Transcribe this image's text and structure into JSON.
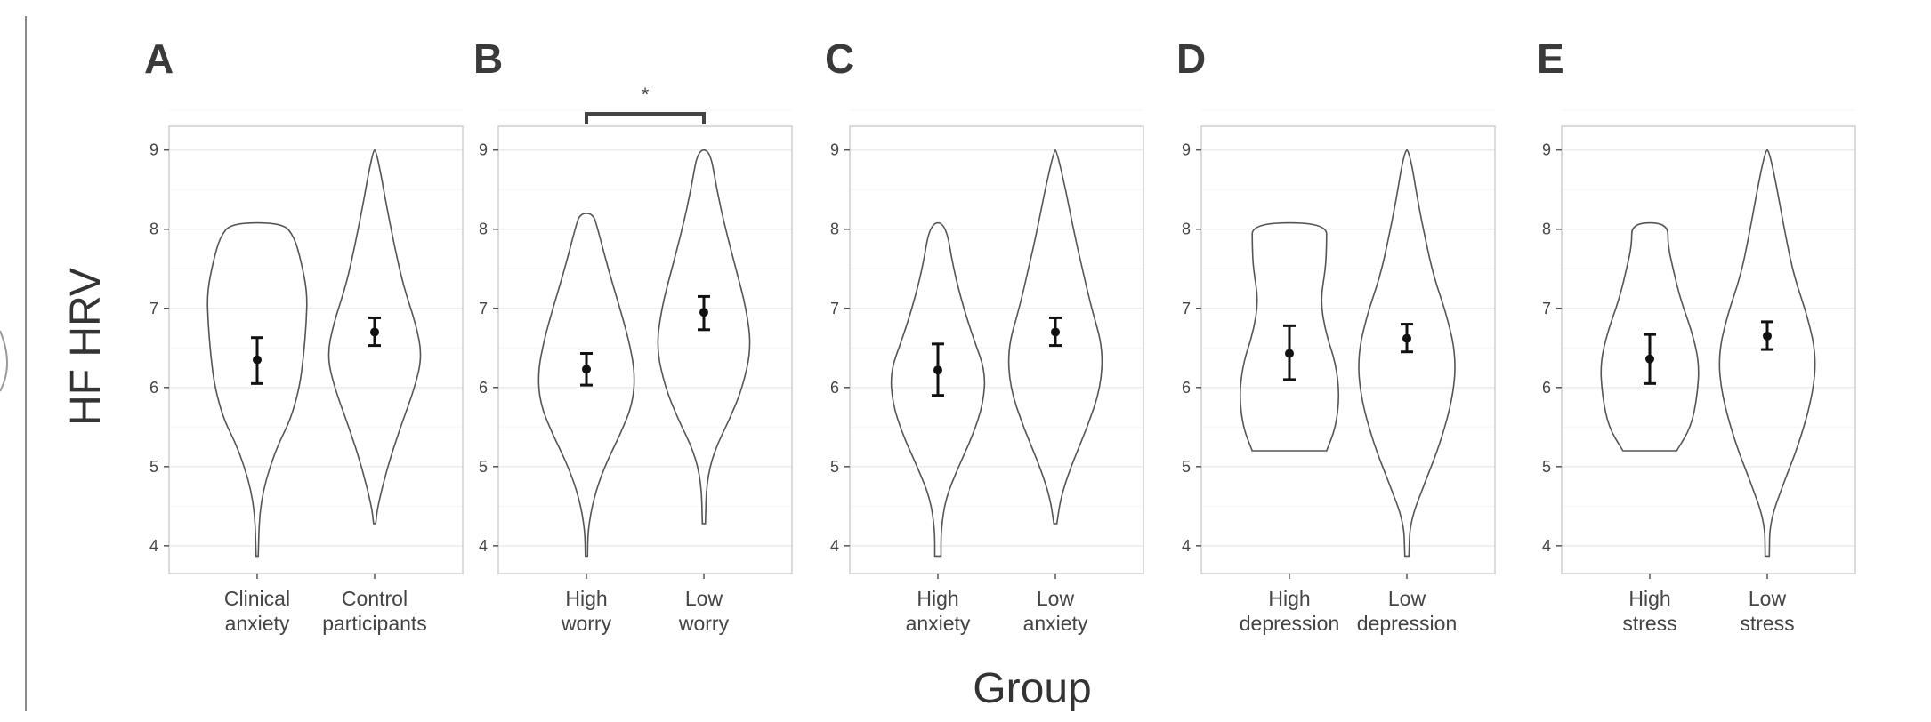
{
  "figure": {
    "ylabel": "HF HRV",
    "xlabel": "Group"
  },
  "chart_data": [
    {
      "type": "violin",
      "panel_label": "A",
      "ylabel": "HF HRV",
      "xlabel": "Group",
      "ylim": [
        3.65,
        9.3
      ],
      "yticks": [
        4,
        5,
        6,
        7,
        8,
        9
      ],
      "grid": true,
      "categories": [
        "Clinical\nanxiety",
        "Control\nparticipants"
      ],
      "groups": [
        {
          "category": "Clinical\nanxiety",
          "mean": 6.35,
          "ci_low": 6.05,
          "ci_high": 6.63,
          "violin": {
            "min": 3.87,
            "max": 8.08,
            "profile": [
              [
                3.87,
                0.02
              ],
              [
                4.1,
                0.03
              ],
              [
                4.4,
                0.05
              ],
              [
                4.7,
                0.12
              ],
              [
                5.0,
                0.25
              ],
              [
                5.3,
                0.42
              ],
              [
                5.6,
                0.65
              ],
              [
                6.0,
                0.82
              ],
              [
                6.4,
                0.9
              ],
              [
                6.8,
                0.95
              ],
              [
                7.2,
                0.97
              ],
              [
                7.6,
                0.85
              ],
              [
                7.9,
                0.72
              ],
              [
                8.08,
                0.5
              ]
            ]
          }
        },
        {
          "category": "Control\nparticipants",
          "mean": 6.7,
          "ci_low": 6.53,
          "ci_high": 6.88,
          "violin": {
            "min": 4.28,
            "max": 9.0,
            "profile": [
              [
                4.28,
                0.02
              ],
              [
                4.5,
                0.06
              ],
              [
                5.0,
                0.25
              ],
              [
                5.5,
                0.5
              ],
              [
                6.0,
                0.78
              ],
              [
                6.4,
                0.92
              ],
              [
                6.8,
                0.8
              ],
              [
                7.3,
                0.55
              ],
              [
                7.8,
                0.38
              ],
              [
                8.3,
                0.23
              ],
              [
                8.7,
                0.12
              ],
              [
                9.0,
                0.02
              ]
            ]
          }
        }
      ]
    },
    {
      "type": "violin",
      "panel_label": "B",
      "ylim": [
        3.65,
        9.3
      ],
      "yticks": [
        4,
        5,
        6,
        7,
        8,
        9
      ],
      "grid": true,
      "categories": [
        "High\nworry",
        "Low\nworry"
      ],
      "significance": {
        "between": [
          "High\nworry",
          "Low\nworry"
        ],
        "label": "*"
      },
      "groups": [
        {
          "category": "High\nworry",
          "mean": 6.23,
          "ci_low": 6.03,
          "ci_high": 6.43,
          "violin": {
            "min": 3.87,
            "max": 8.2,
            "profile": [
              [
                3.87,
                0.02
              ],
              [
                4.2,
                0.03
              ],
              [
                4.6,
                0.14
              ],
              [
                5.0,
                0.35
              ],
              [
                5.4,
                0.65
              ],
              [
                5.8,
                0.9
              ],
              [
                6.2,
                0.94
              ],
              [
                6.6,
                0.82
              ],
              [
                7.0,
                0.65
              ],
              [
                7.5,
                0.42
              ],
              [
                8.0,
                0.22
              ],
              [
                8.2,
                0.13
              ]
            ]
          }
        },
        {
          "category": "Low\nworry",
          "mean": 6.95,
          "ci_low": 6.73,
          "ci_high": 7.15,
          "violin": {
            "min": 4.28,
            "max": 9.0,
            "profile": [
              [
                4.28,
                0.03
              ],
              [
                4.8,
                0.05
              ],
              [
                5.2,
                0.2
              ],
              [
                5.6,
                0.5
              ],
              [
                6.0,
                0.75
              ],
              [
                6.5,
                0.92
              ],
              [
                7.0,
                0.82
              ],
              [
                7.5,
                0.62
              ],
              [
                8.0,
                0.42
              ],
              [
                8.5,
                0.25
              ],
              [
                9.0,
                0.12
              ]
            ]
          }
        }
      ]
    },
    {
      "type": "violin",
      "panel_label": "C",
      "ylim": [
        3.65,
        9.3
      ],
      "yticks": [
        4,
        5,
        6,
        7,
        8,
        9
      ],
      "grid": true,
      "categories": [
        "High\nanxiety",
        "Low\nanxiety"
      ],
      "groups": [
        {
          "category": "High\nanxiety",
          "mean": 6.22,
          "ci_low": 5.9,
          "ci_high": 6.55,
          "violin": {
            "min": 3.87,
            "max": 8.08,
            "profile": [
              [
                3.87,
                0.06
              ],
              [
                4.2,
                0.06
              ],
              [
                4.6,
                0.15
              ],
              [
                5.0,
                0.4
              ],
              [
                5.4,
                0.68
              ],
              [
                5.8,
                0.88
              ],
              [
                6.2,
                0.92
              ],
              [
                6.6,
                0.7
              ],
              [
                7.0,
                0.5
              ],
              [
                7.5,
                0.3
              ],
              [
                8.08,
                0.15
              ]
            ]
          }
        },
        {
          "category": "Low\nanxiety",
          "mean": 6.7,
          "ci_low": 6.53,
          "ci_high": 6.88,
          "violin": {
            "min": 4.28,
            "max": 9.0,
            "profile": [
              [
                4.28,
                0.03
              ],
              [
                4.6,
                0.1
              ],
              [
                5.0,
                0.3
              ],
              [
                5.5,
                0.62
              ],
              [
                6.0,
                0.88
              ],
              [
                6.5,
                0.92
              ],
              [
                7.0,
                0.7
              ],
              [
                7.5,
                0.52
              ],
              [
                8.0,
                0.35
              ],
              [
                8.5,
                0.2
              ],
              [
                9.0,
                0.02
              ]
            ]
          }
        }
      ]
    },
    {
      "type": "violin",
      "panel_label": "D",
      "ylim": [
        3.65,
        9.3
      ],
      "yticks": [
        4,
        5,
        6,
        7,
        8,
        9
      ],
      "grid": true,
      "categories": [
        "High\ndepression",
        "Low\ndepression"
      ],
      "groups": [
        {
          "category": "High\ndepression",
          "mean": 6.43,
          "ci_low": 6.1,
          "ci_high": 6.78,
          "violin": {
            "min": 5.2,
            "max": 8.08,
            "profile": [
              [
                5.2,
                0.72
              ],
              [
                5.5,
                0.9
              ],
              [
                5.9,
                0.97
              ],
              [
                6.3,
                0.9
              ],
              [
                6.7,
                0.7
              ],
              [
                7.1,
                0.6
              ],
              [
                7.5,
                0.7
              ],
              [
                7.8,
                0.72
              ],
              [
                8.08,
                0.72
              ]
            ]
          }
        },
        {
          "category": "Low\ndepression",
          "mean": 6.62,
          "ci_low": 6.45,
          "ci_high": 6.8,
          "violin": {
            "min": 3.87,
            "max": 9.0,
            "profile": [
              [
                3.87,
                0.04
              ],
              [
                4.3,
                0.06
              ],
              [
                4.8,
                0.35
              ],
              [
                5.3,
                0.65
              ],
              [
                5.9,
                0.9
              ],
              [
                6.4,
                0.95
              ],
              [
                6.9,
                0.78
              ],
              [
                7.4,
                0.52
              ],
              [
                7.9,
                0.35
              ],
              [
                8.4,
                0.2
              ],
              [
                8.8,
                0.1
              ],
              [
                9.0,
                0.02
              ]
            ]
          }
        }
      ]
    },
    {
      "type": "violin",
      "panel_label": "E",
      "ylim": [
        3.65,
        9.3
      ],
      "yticks": [
        4,
        5,
        6,
        7,
        8,
        9
      ],
      "grid": true,
      "categories": [
        "High\nstress",
        "Low\nstress"
      ],
      "groups": [
        {
          "category": "High\nstress",
          "mean": 6.36,
          "ci_low": 6.05,
          "ci_high": 6.67,
          "violin": {
            "min": 5.2,
            "max": 8.08,
            "profile": [
              [
                5.2,
                0.52
              ],
              [
                5.5,
                0.8
              ],
              [
                5.9,
                0.92
              ],
              [
                6.3,
                0.96
              ],
              [
                6.7,
                0.82
              ],
              [
                7.1,
                0.6
              ],
              [
                7.5,
                0.45
              ],
              [
                7.8,
                0.35
              ],
              [
                8.08,
                0.35
              ]
            ]
          }
        },
        {
          "category": "Low\nstress",
          "mean": 6.65,
          "ci_low": 6.48,
          "ci_high": 6.83,
          "violin": {
            "min": 3.87,
            "max": 9.0,
            "profile": [
              [
                3.87,
                0.04
              ],
              [
                4.3,
                0.05
              ],
              [
                4.8,
                0.32
              ],
              [
                5.3,
                0.62
              ],
              [
                5.9,
                0.88
              ],
              [
                6.4,
                0.95
              ],
              [
                6.9,
                0.78
              ],
              [
                7.4,
                0.52
              ],
              [
                7.9,
                0.36
              ],
              [
                8.4,
                0.22
              ],
              [
                8.8,
                0.1
              ],
              [
                9.0,
                0.02
              ]
            ]
          }
        }
      ]
    }
  ]
}
